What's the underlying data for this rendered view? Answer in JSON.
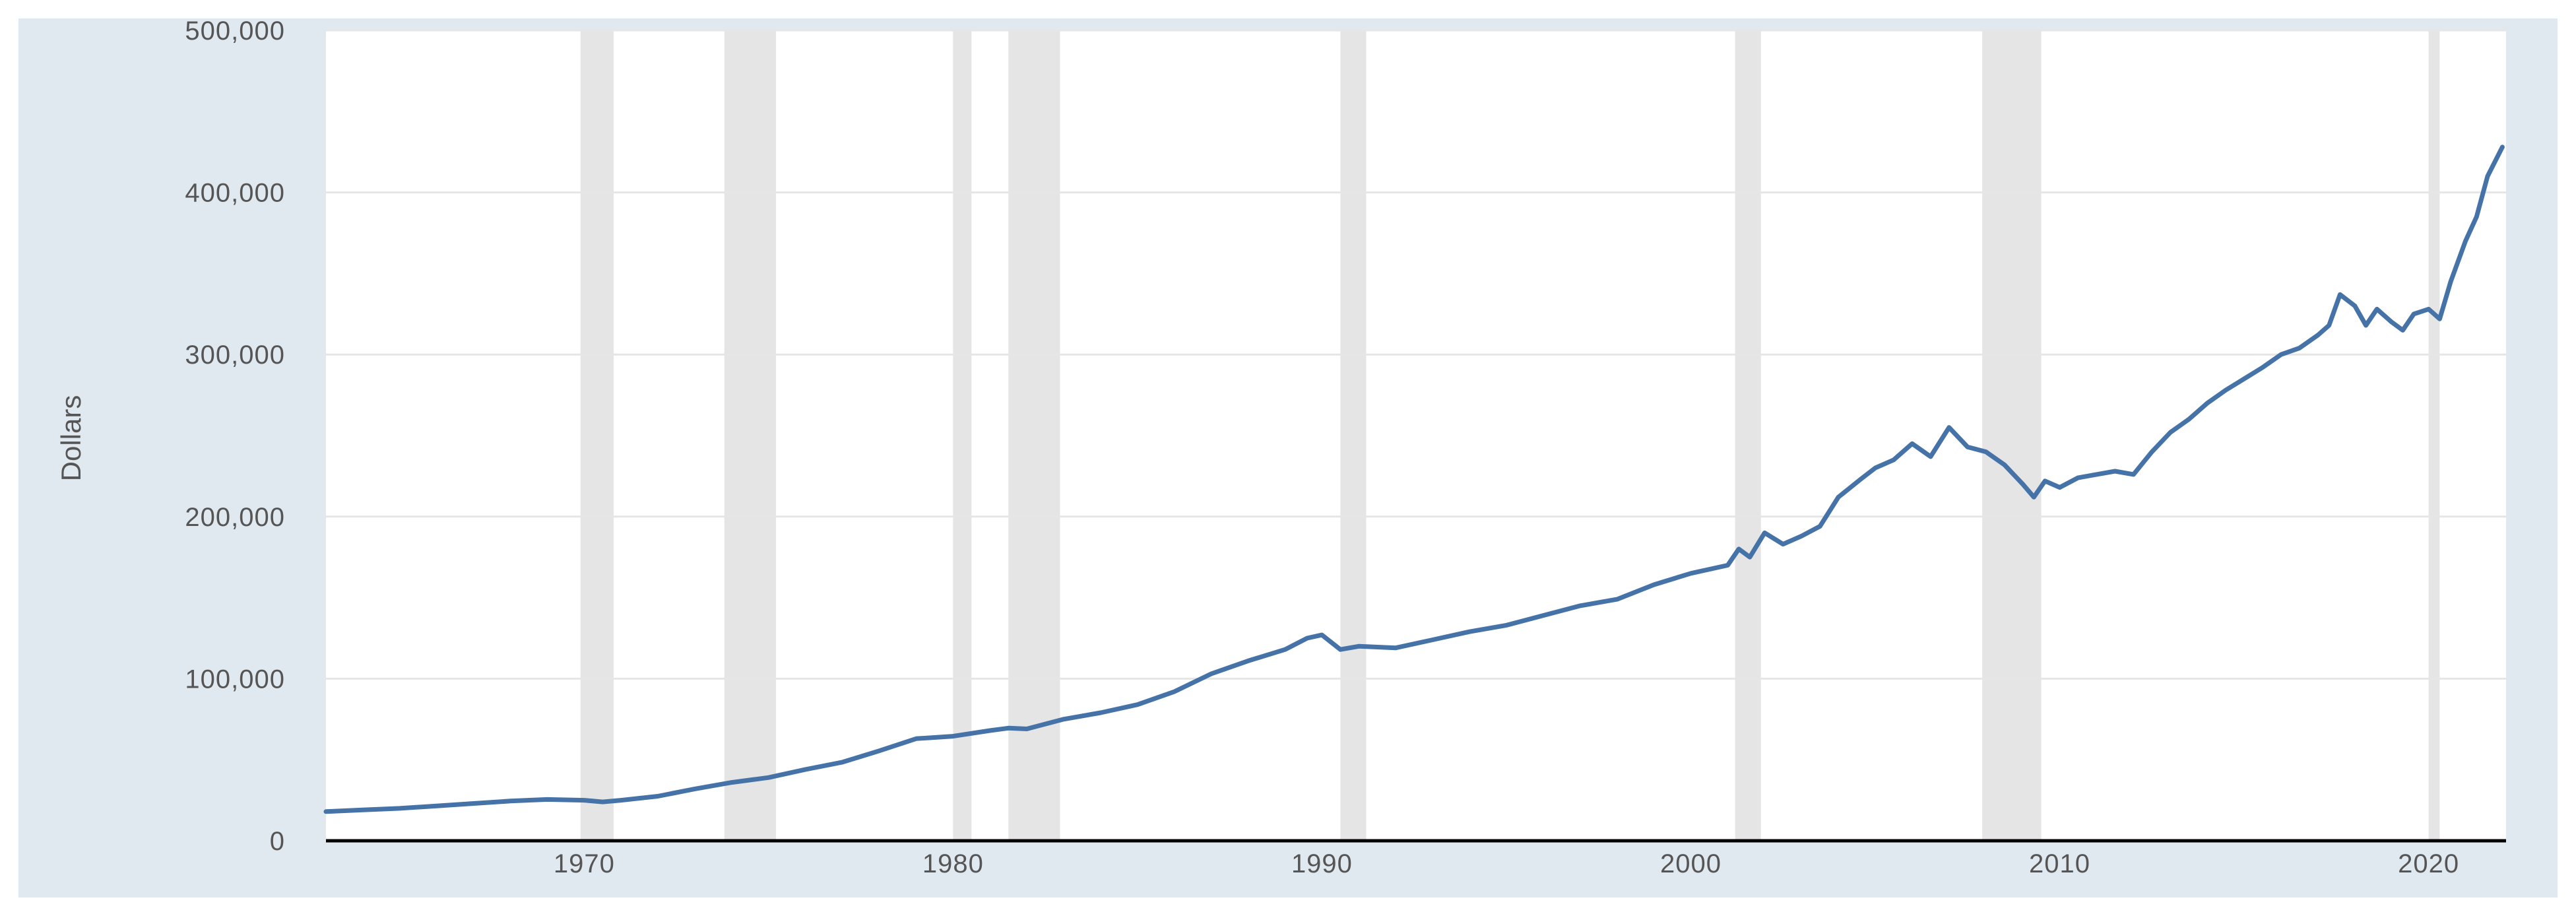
{
  "chart_data": {
    "type": "line",
    "title": "",
    "xlabel": "",
    "ylabel": "Dollars",
    "xlim": [
      1963.0,
      2022.1
    ],
    "ylim": [
      0,
      500000
    ],
    "grid": true,
    "legend": "none",
    "x_ticks": [
      {
        "value": 1970,
        "label": "1970"
      },
      {
        "value": 1980,
        "label": "1980"
      },
      {
        "value": 1990,
        "label": "1990"
      },
      {
        "value": 2000,
        "label": "2000"
      },
      {
        "value": 2010,
        "label": "2010"
      },
      {
        "value": 2020,
        "label": "2020"
      }
    ],
    "y_ticks": [
      {
        "value": 0,
        "label": "0"
      },
      {
        "value": 100000,
        "label": "100,000"
      },
      {
        "value": 200000,
        "label": "200,000"
      },
      {
        "value": 300000,
        "label": "300,000"
      },
      {
        "value": 400000,
        "label": "400,000"
      },
      {
        "value": 500000,
        "label": "500,000"
      }
    ],
    "recessions": [
      [
        1969.9,
        1970.8
      ],
      [
        1973.8,
        1975.2
      ],
      [
        1980.0,
        1980.5
      ],
      [
        1981.5,
        1982.9
      ],
      [
        1990.5,
        1991.2
      ],
      [
        2001.2,
        2001.9
      ],
      [
        2007.9,
        2009.5
      ],
      [
        2020.0,
        2020.3
      ]
    ],
    "series": [
      {
        "color": "#4572a7",
        "x": [
          1963.0,
          1964.0,
          1965.0,
          1966.0,
          1967.0,
          1968.0,
          1969.0,
          1970.0,
          1970.5,
          1971.0,
          1972.0,
          1973.0,
          1974.0,
          1975.0,
          1976.0,
          1977.0,
          1978.0,
          1979.0,
          1980.0,
          1981.0,
          1981.5,
          1982.0,
          1983.0,
          1984.0,
          1985.0,
          1986.0,
          1987.0,
          1988.0,
          1989.0,
          1989.6,
          1990.0,
          1990.5,
          1991.0,
          1992.0,
          1993.0,
          1994.0,
          1995.0,
          1996.0,
          1997.0,
          1998.0,
          1999.0,
          2000.0,
          2001.0,
          2001.3,
          2001.6,
          2002.0,
          2002.5,
          2003.0,
          2003.5,
          2004.0,
          2004.6,
          2005.0,
          2005.5,
          2006.0,
          2006.5,
          2007.0,
          2007.5,
          2008.0,
          2008.5,
          2009.0,
          2009.3,
          2009.6,
          2010.0,
          2010.5,
          2011.0,
          2011.5,
          2012.0,
          2012.5,
          2013.0,
          2013.5,
          2014.0,
          2014.5,
          2015.0,
          2015.5,
          2016.0,
          2016.5,
          2017.0,
          2017.3,
          2017.6,
          2018.0,
          2018.3,
          2018.6,
          2019.0,
          2019.3,
          2019.6,
          2020.0,
          2020.3,
          2020.6,
          2021.0,
          2021.3,
          2021.6,
          2022.0
        ],
        "values": [
          18000,
          19000,
          20000,
          21500,
          23000,
          24500,
          25500,
          25000,
          24000,
          25000,
          27500,
          32000,
          36000,
          39000,
          44000,
          48500,
          55500,
          63000,
          64500,
          68000,
          69500,
          69000,
          75000,
          79000,
          84000,
          92000,
          103000,
          111000,
          118000,
          125000,
          127000,
          118000,
          120000,
          119000,
          124000,
          129000,
          133000,
          139000,
          145000,
          149000,
          158000,
          165000,
          170000,
          180000,
          175000,
          190000,
          183000,
          188000,
          194000,
          212000,
          223000,
          230000,
          235000,
          245000,
          237000,
          255000,
          243000,
          240000,
          232000,
          220000,
          212000,
          222000,
          218000,
          224000,
          226000,
          228000,
          226000,
          240000,
          252000,
          260000,
          270000,
          278000,
          285000,
          292000,
          300000,
          304000,
          312000,
          318000,
          337000,
          330000,
          318000,
          328000,
          320000,
          315000,
          325000,
          328000,
          322000,
          345000,
          370000,
          385000,
          410000,
          428000
        ]
      }
    ]
  }
}
